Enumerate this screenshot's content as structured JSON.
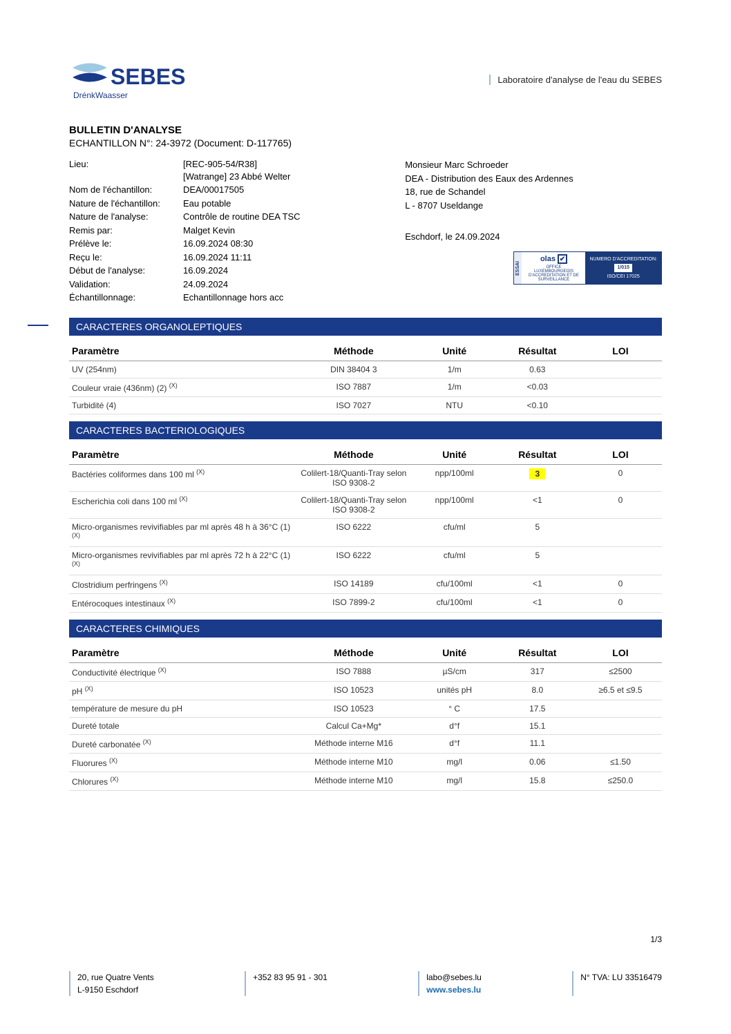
{
  "header": {
    "brand": "SEBES",
    "brand_sub": "DrénkWaasser",
    "lab_label": "Laboratoire d'analyse de l'eau du SEBES",
    "logo_colors": {
      "wave_light": "#9ec9e2",
      "wave_dark": "#1a3a8a",
      "text": "#1a3a8a"
    }
  },
  "bulletin": {
    "title": "BULLETIN D'ANALYSE",
    "subtitle": "ECHANTILLON N°: 24-3972 (Document: D-117765)"
  },
  "info": {
    "lieu_label": "Lieu:",
    "lieu_value1": "[REC-905-54/R38]",
    "lieu_value2": "[Watrange] 23 Abbé Welter",
    "nom_label": "Nom de l'échantillon:",
    "nom_value": "DEA/00017505",
    "nature_ech_label": "Nature de l'échantillon:",
    "nature_ech_value": "Eau potable",
    "nature_ana_label": "Nature de l'analyse:",
    "nature_ana_value": "Contrôle de routine DEA TSC",
    "remis_label": "Remis par:",
    "remis_value": "Malget Kevin",
    "preleve_label": "Prélève le:",
    "preleve_value": "16.09.2024 08:30",
    "recu_label": "Reçu le:",
    "recu_value": "16.09.2024 11:11",
    "debut_label": "Début de l'analyse:",
    "debut_value": "16.09.2024",
    "valid_label": "Validation:",
    "valid_value": "24.09.2024",
    "echant_label": "Échantillonnage:",
    "echant_value": "Echantillonnage hors acc"
  },
  "recipient": {
    "line1": "Monsieur Marc Schroeder",
    "line2": "DEA - Distribution des Eaux des Ardennes",
    "line3": "18, rue de Schandel",
    "line4": "L - 8707 Useldange",
    "place_date": "Eschdorf, le 24.09.2024"
  },
  "accred": {
    "essai": "ESSAI",
    "olas": "olas",
    "check": "✔",
    "sub": "OFFICE LUXEMBOURGEOIS D'ACCREDITATION ET DE SURVEILLANCE",
    "r1": "NUMERO D'ACCREDITATION:",
    "num": "1/015",
    "r2": "ISO/CEI 17025"
  },
  "columns": {
    "param": "Paramètre",
    "method": "Méthode",
    "unit": "Unité",
    "result": "Résultat",
    "loi": "LOI"
  },
  "sections": [
    {
      "title": "CARACTERES ORGANOLEPTIQUES",
      "rows": [
        {
          "param": "UV (254nm)",
          "sup": "",
          "method": "DIN 38404 3",
          "unit": "1/m",
          "result": "0.63",
          "loi": "",
          "hl": false
        },
        {
          "param": "Couleur vraie (436nm) (2) ",
          "sup": "(X)",
          "method": "ISO 7887",
          "unit": "1/m",
          "result": "<0.03",
          "loi": "",
          "hl": false
        },
        {
          "param": "Turbidité (4)",
          "sup": "",
          "method": "ISO 7027",
          "unit": "NTU",
          "result": "<0.10",
          "loi": "",
          "hl": false
        }
      ]
    },
    {
      "title": "CARACTERES BACTERIOLOGIQUES",
      "rows": [
        {
          "param": "Bactéries coliformes dans 100 ml ",
          "sup": "(X)",
          "method": "Colilert-18/Quanti-Tray selon ISO 9308-2",
          "unit": "npp/100ml",
          "result": "3",
          "loi": "0",
          "hl": true
        },
        {
          "param": "Escherichia coli dans 100 ml ",
          "sup": "(X)",
          "method": "Colilert-18/Quanti-Tray selon ISO 9308-2",
          "unit": "npp/100ml",
          "result": "<1",
          "loi": "0",
          "hl": false
        },
        {
          "param": "Micro-organismes revivifiables par ml après 48 h à 36°C (1) ",
          "sup": "(X)",
          "method": "ISO 6222",
          "unit": "cfu/ml",
          "result": "5",
          "loi": "",
          "hl": false
        },
        {
          "param": "Micro-organismes revivifiables par ml après 72 h à 22°C (1) ",
          "sup": "(X)",
          "method": "ISO 6222",
          "unit": "cfu/ml",
          "result": "5",
          "loi": "",
          "hl": false
        },
        {
          "param": "Clostridium perfringens ",
          "sup": "(X)",
          "method": "ISO 14189",
          "unit": "cfu/100ml",
          "result": "<1",
          "loi": "0",
          "hl": false
        },
        {
          "param": "Entérocoques intestinaux ",
          "sup": "(X)",
          "method": "ISO 7899-2",
          "unit": "cfu/100ml",
          "result": "<1",
          "loi": "0",
          "hl": false
        }
      ]
    },
    {
      "title": "CARACTERES CHIMIQUES",
      "rows": [
        {
          "param": "Conductivité électrique ",
          "sup": "(X)",
          "method": "ISO 7888",
          "unit": "µS/cm",
          "result": "317",
          "loi": "≤2500",
          "hl": false
        },
        {
          "param": "pH ",
          "sup": "(X)",
          "method": "ISO 10523",
          "unit": "unités pH",
          "result": "8.0",
          "loi": "≥6.5 et ≤9.5",
          "hl": false
        },
        {
          "param": "température de mesure du pH",
          "sup": "",
          "method": "ISO 10523",
          "unit": "° C",
          "result": "17.5",
          "loi": "",
          "hl": false
        },
        {
          "param": "Dureté totale",
          "sup": "",
          "method": "Calcul Ca+Mg*",
          "unit": "d°f",
          "result": "15.1",
          "loi": "",
          "hl": false
        },
        {
          "param": "Dureté carbonatée ",
          "sup": "(X)",
          "method": "Méthode interne M16",
          "unit": "d°f",
          "result": "11.1",
          "loi": "",
          "hl": false
        },
        {
          "param": "Fluorures ",
          "sup": "(X)",
          "method": "Méthode interne M10",
          "unit": "mg/l",
          "result": "0.06",
          "loi": "≤1.50",
          "hl": false
        },
        {
          "param": "Chlorures ",
          "sup": "(X)",
          "method": "Méthode interne M10",
          "unit": "mg/l",
          "result": "15.8",
          "loi": "≤250.0",
          "hl": false
        }
      ]
    }
  ],
  "page": "1/3",
  "footer": {
    "addr1": "20, rue Quatre Vents",
    "addr2": "L-9150 Eschdorf",
    "phone": "+352 83 95 91 - 301",
    "email": "labo@sebes.lu",
    "web": "www.sebes.lu",
    "tva": "N° TVA: LU 33516479"
  },
  "colors": {
    "section_bar": "#1a3a8a",
    "highlight": "#ffff00",
    "border_light": "#dddddd",
    "accent": "#9db8d4"
  }
}
